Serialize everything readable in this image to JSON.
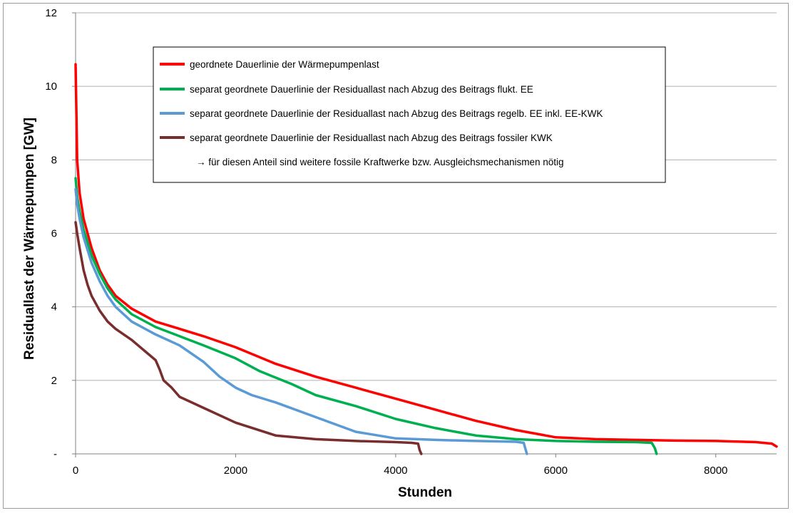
{
  "chart_data": {
    "type": "line",
    "title": "",
    "xlabel": "Stunden",
    "ylabel": "Residuallast der Wärmepumpen [GW]",
    "xlim": [
      0,
      8760
    ],
    "ylim": [
      0,
      12
    ],
    "xticks": [
      0,
      2000,
      4000,
      6000,
      8000
    ],
    "xtick_labels": [
      "0",
      "2000",
      "4000",
      "6000",
      "8000"
    ],
    "yticks": [
      0,
      2,
      4,
      6,
      8,
      10,
      12
    ],
    "ytick_labels": [
      "-",
      "2",
      "4",
      "6",
      "8",
      "10",
      "12"
    ],
    "grid": "horizontal",
    "legend_position": "top-center",
    "legend_note": "→ für diesen Anteil sind weitere fossile Kraftwerke bzw. Ausgleichsmechanismen nötig",
    "series": [
      {
        "name": "geordnete Dauerlinie der Wärmepumpenlast",
        "color": "#ff0000",
        "x": [
          0,
          20,
          50,
          100,
          200,
          300,
          400,
          500,
          700,
          1000,
          1300,
          1600,
          2000,
          2500,
          3000,
          3500,
          4000,
          4500,
          5000,
          5500,
          6000,
          6500,
          7000,
          7500,
          8000,
          8500,
          8700,
          8760
        ],
        "y": [
          10.6,
          8.0,
          7.1,
          6.4,
          5.6,
          5.0,
          4.6,
          4.3,
          3.95,
          3.6,
          3.4,
          3.2,
          2.9,
          2.45,
          2.1,
          1.8,
          1.5,
          1.2,
          0.9,
          0.65,
          0.45,
          0.4,
          0.38,
          0.36,
          0.35,
          0.32,
          0.28,
          0.2
        ]
      },
      {
        "name": "separat geordnete Dauerlinie der Residuallast nach Abzug des Beitrags flukt. EE",
        "color": "#00b050",
        "x": [
          0,
          20,
          50,
          100,
          200,
          300,
          400,
          500,
          700,
          1000,
          1300,
          1600,
          2000,
          2300,
          2700,
          3000,
          3500,
          4000,
          4500,
          5000,
          5500,
          6000,
          6500,
          7000,
          7200,
          7240,
          7260
        ],
        "y": [
          7.5,
          7.0,
          6.6,
          6.1,
          5.4,
          4.9,
          4.5,
          4.2,
          3.8,
          3.45,
          3.2,
          2.95,
          2.6,
          2.25,
          1.9,
          1.6,
          1.3,
          0.95,
          0.7,
          0.5,
          0.4,
          0.35,
          0.33,
          0.32,
          0.3,
          0.15,
          0.0
        ]
      },
      {
        "name": "separat geordnete Dauerlinie der Residuallast nach Abzug des Beitrags regelb. EE inkl. EE-KWK",
        "color": "#5b9bd5",
        "x": [
          0,
          20,
          50,
          100,
          200,
          300,
          400,
          500,
          700,
          1000,
          1300,
          1600,
          1800,
          2000,
          2200,
          2500,
          3000,
          3500,
          4000,
          4500,
          5000,
          5500,
          5600,
          5620,
          5640
        ],
        "y": [
          7.2,
          6.8,
          6.4,
          5.9,
          5.2,
          4.7,
          4.3,
          4.0,
          3.6,
          3.25,
          2.95,
          2.5,
          2.1,
          1.8,
          1.6,
          1.4,
          1.0,
          0.6,
          0.42,
          0.38,
          0.35,
          0.33,
          0.3,
          0.15,
          0.0
        ]
      },
      {
        "name": "separat geordnete Dauerlinie der Residuallast nach Abzug des Beitrags fossiler KWK",
        "color": "#7a2d2d",
        "x": [
          0,
          20,
          50,
          100,
          150,
          200,
          300,
          400,
          500,
          700,
          1000,
          1050,
          1100,
          1200,
          1300,
          1600,
          2000,
          2500,
          3000,
          3500,
          4000,
          4200,
          4280,
          4300,
          4320
        ],
        "y": [
          6.3,
          6.0,
          5.6,
          5.0,
          4.6,
          4.3,
          3.9,
          3.6,
          3.4,
          3.1,
          2.55,
          2.3,
          2.0,
          1.8,
          1.55,
          1.25,
          0.85,
          0.5,
          0.4,
          0.35,
          0.32,
          0.3,
          0.28,
          0.1,
          0.0
        ]
      }
    ]
  }
}
